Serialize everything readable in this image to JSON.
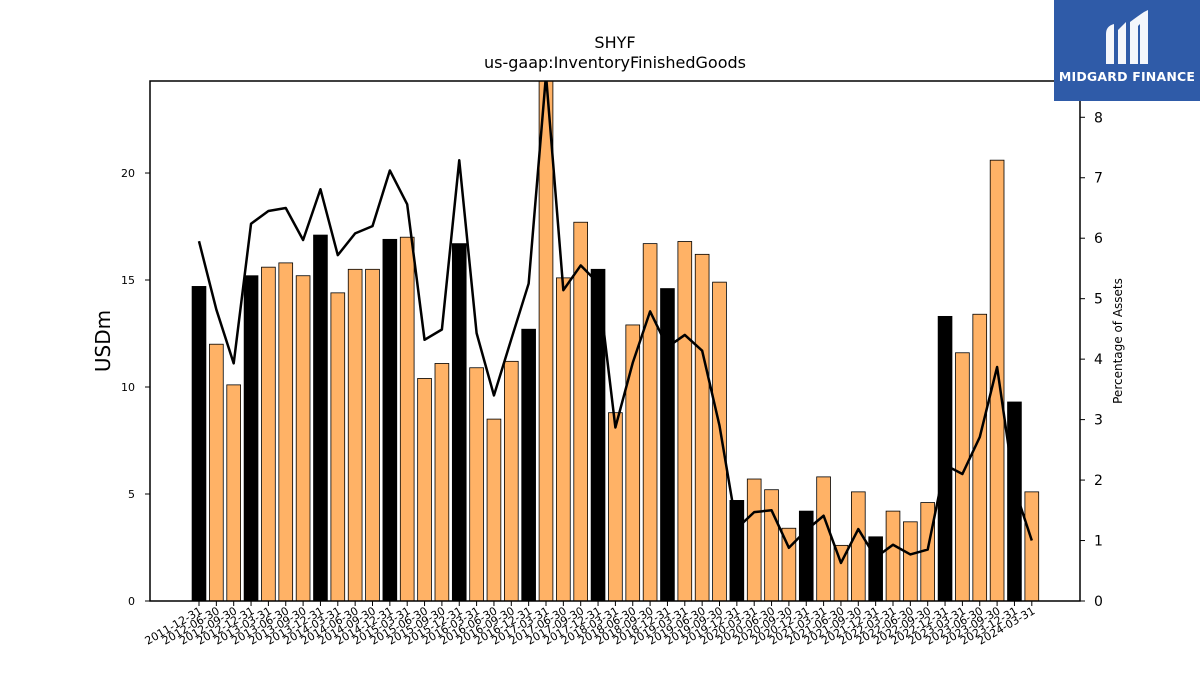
{
  "brand": {
    "name": "MIDGARD FINANCE",
    "background_color": "#2f5ba8",
    "text_color": "#ffffff"
  },
  "chart_data": {
    "type": "bar",
    "title": "SHYF",
    "subtitle": "us-gaap:InventoryFinishedGoods",
    "ylabel": "USDm",
    "y2label": "Percentage of Assets",
    "ylim": [
      0,
      24.3
    ],
    "y2lim": [
      0,
      8.6
    ],
    "yticks": [
      0,
      5,
      10,
      15,
      20
    ],
    "y2ticks": [
      0,
      1,
      2,
      3,
      4,
      5,
      6,
      7,
      8
    ],
    "grid": false,
    "legend": "none",
    "colors": {
      "bar_annual": "#000000",
      "bar_quarter": "#ffb266",
      "line": "#000000"
    },
    "categories": [
      "2011-12-31",
      "2012-06-30",
      "2012-09-30",
      "2012-12-31",
      "2013-03-31",
      "2013-06-30",
      "2013-09-30",
      "2013-12-31",
      "2014-03-31",
      "2014-06-30",
      "2014-09-30",
      "2014-12-31",
      "2015-03-31",
      "2015-06-30",
      "2015-09-30",
      "2015-12-31",
      "2016-03-31",
      "2016-06-30",
      "2016-09-30",
      "2016-12-31",
      "2017-03-31",
      "2017-06-30",
      "2017-09-30",
      "2017-12-31",
      "2018-03-31",
      "2018-06-30",
      "2018-09-30",
      "2018-12-31",
      "2019-03-31",
      "2019-06-30",
      "2019-09-30",
      "2019-12-31",
      "2020-03-31",
      "2020-06-30",
      "2020-09-30",
      "2020-12-31",
      "2021-03-31",
      "2021-06-30",
      "2021-09-30",
      "2021-12-31",
      "2022-03-31",
      "2022-06-30",
      "2022-09-30",
      "2022-12-31",
      "2023-03-31",
      "2023-06-30",
      "2023-09-30",
      "2023-12-31",
      "2024-03-31"
    ],
    "is_annual": [
      true,
      false,
      false,
      true,
      false,
      false,
      false,
      true,
      false,
      false,
      false,
      true,
      false,
      false,
      false,
      true,
      false,
      false,
      false,
      true,
      false,
      false,
      false,
      true,
      false,
      false,
      false,
      true,
      false,
      false,
      false,
      true,
      false,
      false,
      false,
      true,
      false,
      false,
      false,
      true,
      false,
      false,
      false,
      true,
      false,
      false,
      false,
      true,
      false
    ],
    "values": [
      14.7,
      12.0,
      10.1,
      15.2,
      15.6,
      15.8,
      15.2,
      17.1,
      14.4,
      15.5,
      15.5,
      16.9,
      17.0,
      10.4,
      11.1,
      16.7,
      10.9,
      8.5,
      11.2,
      12.7,
      24.3,
      15.1,
      17.7,
      15.5,
      8.8,
      12.9,
      16.7,
      14.6,
      16.8,
      16.2,
      14.9,
      4.7,
      5.7,
      5.2,
      3.4,
      4.2,
      5.8,
      2.6,
      5.1,
      3.0,
      4.2,
      3.7,
      4.6,
      13.3,
      11.6,
      13.4,
      20.6,
      9.3,
      5.1
    ],
    "pct_of_assets": [
      5.95,
      4.82,
      3.93,
      6.24,
      6.45,
      6.5,
      5.97,
      6.81,
      5.72,
      6.08,
      6.2,
      7.12,
      6.56,
      4.32,
      4.49,
      7.29,
      4.43,
      3.4,
      4.33,
      5.25,
      8.7,
      5.14,
      5.55,
      5.26,
      2.87,
      3.94,
      4.79,
      4.2,
      4.4,
      4.14,
      2.9,
      1.2,
      1.47,
      1.5,
      0.88,
      1.17,
      1.41,
      0.63,
      1.19,
      0.72,
      0.93,
      0.77,
      0.85,
      2.25,
      2.1,
      2.71,
      3.87,
      1.87,
      1.0
    ]
  }
}
